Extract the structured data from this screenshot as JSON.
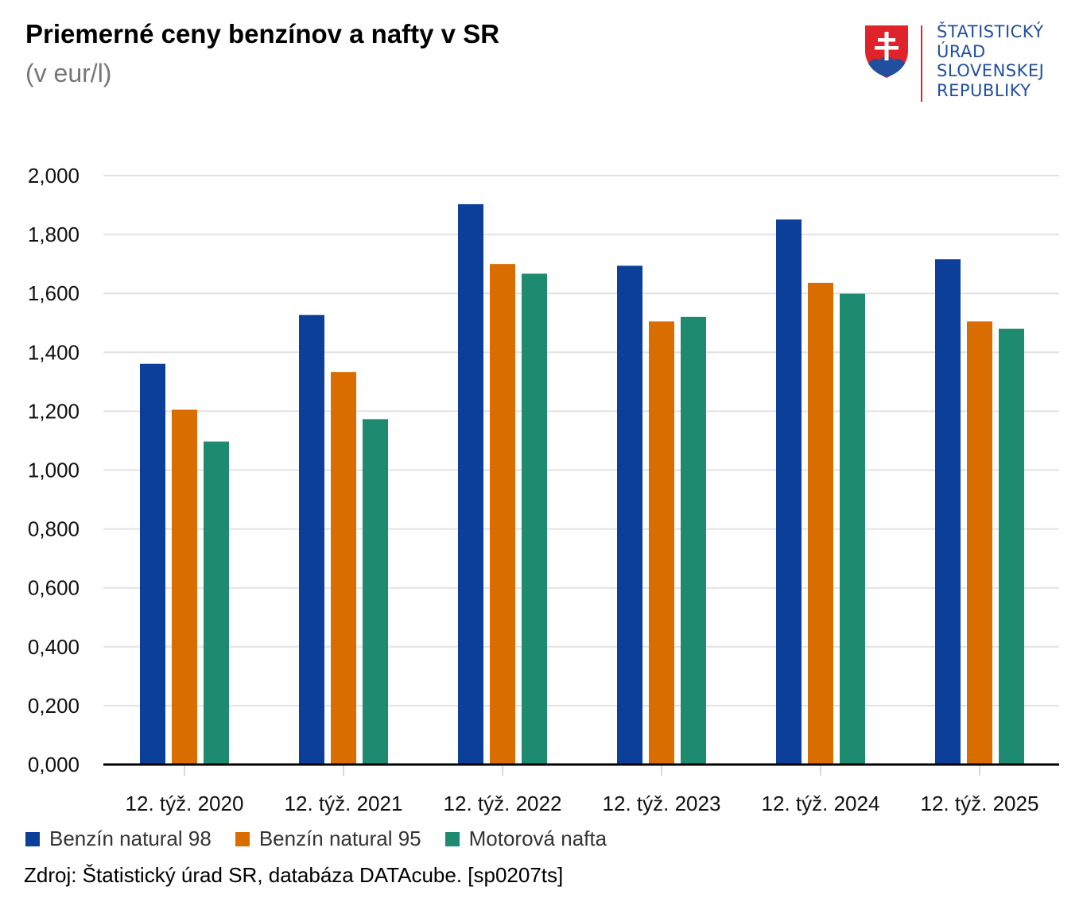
{
  "header": {
    "title": "Priemerné ceny benzínov a nafty v SR",
    "subtitle": "(v eur/l)"
  },
  "logo": {
    "lines": [
      "ŠTATISTICKÝ",
      "ÚRAD",
      "SLOVENSKEJ",
      "REPUBLIKY"
    ],
    "colors": {
      "text": "#1f4f9d",
      "line": "#d8262e",
      "shield_red": "#e0232b",
      "shield_blue": "#1f4f9d"
    }
  },
  "chart_data": {
    "type": "bar",
    "title": "Priemerné ceny benzínov a nafty v SR",
    "subtitle": "(v eur/l)",
    "categories": [
      "12. týž. 2020",
      "12. týž. 2021",
      "12. týž. 2022",
      "12. týž. 2023",
      "12. týž. 2024",
      "12. týž. 2025"
    ],
    "series": [
      {
        "name": "Benzín natural 98",
        "color": "#0c3f99",
        "values": [
          1.361,
          1.527,
          1.903,
          1.694,
          1.851,
          1.716
        ]
      },
      {
        "name": "Benzín natural 95",
        "color": "#d96d00",
        "values": [
          1.205,
          1.333,
          1.7,
          1.505,
          1.636,
          1.505
        ]
      },
      {
        "name": "Motorová nafta",
        "color": "#1e8a70",
        "values": [
          1.097,
          1.173,
          1.667,
          1.52,
          1.599,
          1.48
        ]
      }
    ],
    "yticks": [
      "0,000",
      "0,200",
      "0,400",
      "0,600",
      "0,800",
      "1,000",
      "1,200",
      "1,400",
      "1,600",
      "1,800",
      "2,000"
    ],
    "ylim": [
      0,
      2.0
    ],
    "grid": true,
    "legend": "bottom-left"
  },
  "source": "Zdroj: Štatistický úrad SR, databáza DATAcube. [sp0207ts]"
}
